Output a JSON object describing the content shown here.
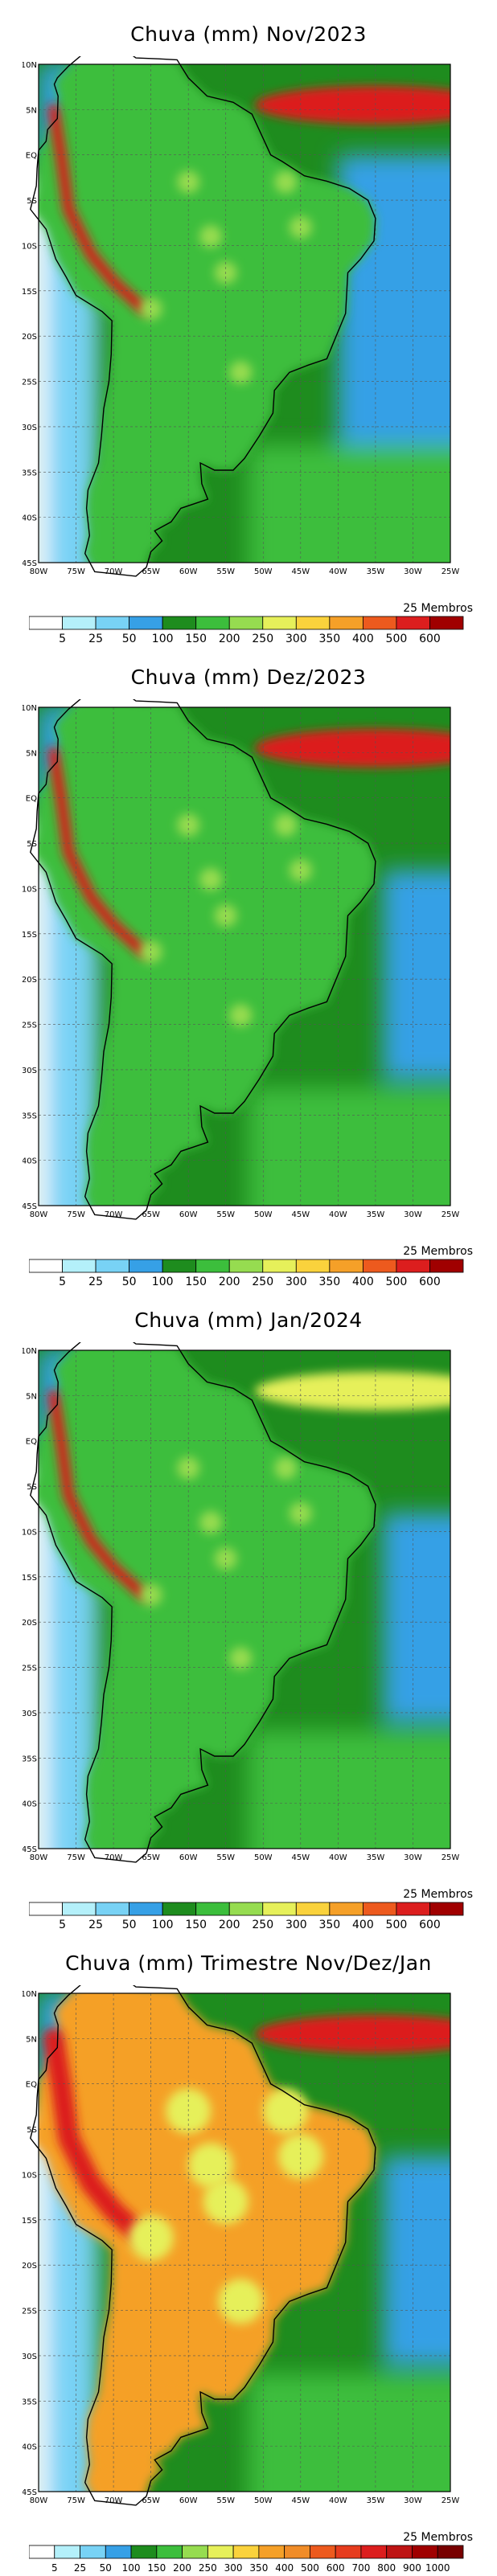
{
  "panels": [
    {
      "title": "Chuva (mm) Nov/2023",
      "members": "25 Membros"
    },
    {
      "title": "Chuva (mm) Dez/2023",
      "members": "25 Membros"
    },
    {
      "title": "Chuva (mm) Jan/2024",
      "members": "25 Membros"
    },
    {
      "title": "Chuva (mm) Trimestre Nov/Dez/Jan",
      "members": "25 Membros"
    }
  ],
  "lat_ticks": [
    "10N",
    "5N",
    "EQ",
    "5S",
    "10S",
    "15S",
    "20S",
    "25S",
    "30S",
    "35S",
    "40S",
    "45S"
  ],
  "lon_ticks": [
    "80W",
    "75W",
    "70W",
    "65W",
    "60W",
    "55W",
    "50W",
    "45W",
    "40W",
    "35W",
    "30W",
    "25W"
  ],
  "colorbar_monthly": {
    "labels": [
      "5",
      "25",
      "50",
      "100",
      "150",
      "200",
      "250",
      "300",
      "350",
      "400",
      "500",
      "600"
    ],
    "colors": [
      "#ffffff",
      "#b4f0fa",
      "#78d2f5",
      "#36a0e6",
      "#1e8c1e",
      "#3cbe3c",
      "#96dc50",
      "#e6f05a",
      "#fad23c",
      "#f5a028",
      "#ed5a1e",
      "#dc1e1e",
      "#a00000"
    ]
  },
  "colorbar_trimester": {
    "labels": [
      "5",
      "25",
      "50",
      "100",
      "150",
      "200",
      "250",
      "300",
      "350",
      "400",
      "500",
      "600",
      "700",
      "800",
      "900",
      "1000"
    ],
    "colors": [
      "#ffffff",
      "#b4f0fa",
      "#78d2f5",
      "#36a0e6",
      "#1e8c1e",
      "#3cbe3c",
      "#96dc50",
      "#e6f05a",
      "#fad23c",
      "#f5a028",
      "#f08c28",
      "#ed5a1e",
      "#e63c1e",
      "#dc1e1e",
      "#be1414",
      "#a00000",
      "#780000"
    ]
  }
}
